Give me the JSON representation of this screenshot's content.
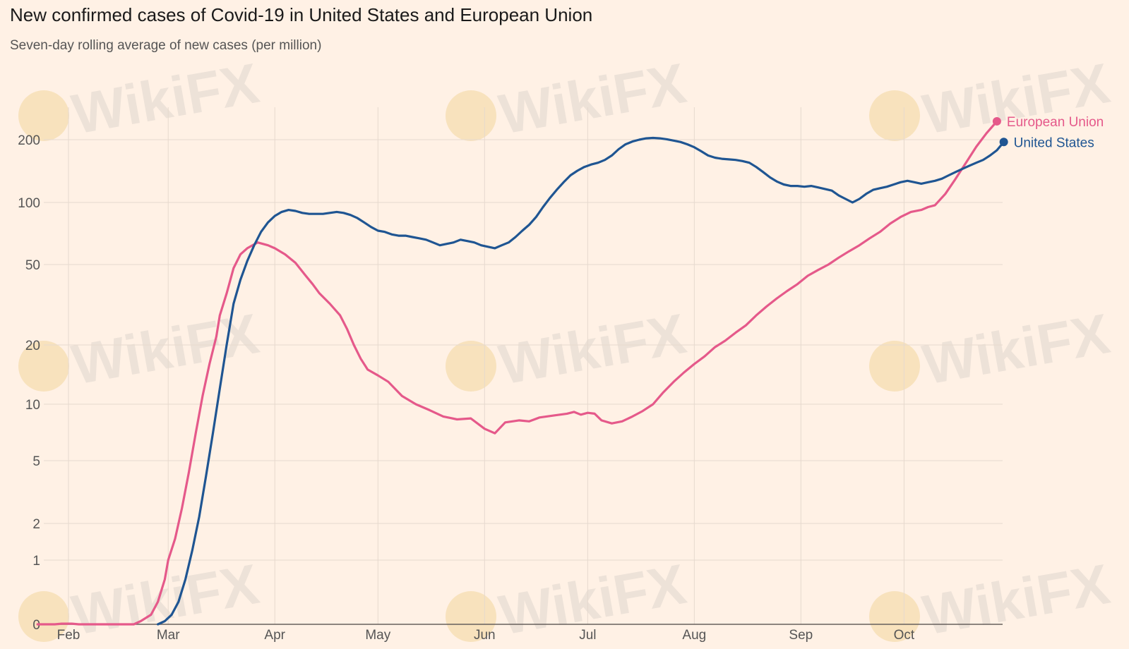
{
  "colors": {
    "background": "#fff1e5",
    "eu": "#e5598a",
    "us": "#1f5592"
  },
  "watermark": {
    "text": "WikiFX",
    "icon": "wikifx-eagle-logo"
  },
  "chart_data": {
    "type": "line",
    "title": "New confirmed cases of Covid-19 in United States and European Union",
    "subtitle": "Seven-day rolling average of new cases (per million)",
    "xlabel": "",
    "ylabel": "",
    "y_scale": "log-like (0 shown at baseline)",
    "ylim": [
      0,
      260
    ],
    "y_ticks": [
      0,
      1,
      2,
      5,
      10,
      20,
      50,
      100,
      200
    ],
    "y_tick_labels": [
      "0",
      "1",
      "2",
      "5",
      "10",
      "20",
      "50",
      "100",
      "200"
    ],
    "x_unit": "days since Jan 23",
    "x_ticks": [
      {
        "label": "Feb",
        "day": 9
      },
      {
        "label": "Mar",
        "day": 38
      },
      {
        "label": "Apr",
        "day": 69
      },
      {
        "label": "May",
        "day": 99
      },
      {
        "label": "Jun",
        "day": 130
      },
      {
        "label": "Jul",
        "day": 160
      },
      {
        "label": "Aug",
        "day": 191
      },
      {
        "label": "Sep",
        "day": 222
      },
      {
        "label": "Oct",
        "day": 252
      }
    ],
    "grid": true,
    "series": [
      {
        "name": "European Union",
        "color": "#e5598a",
        "points": [
          [
            0,
            0
          ],
          [
            5,
            0
          ],
          [
            7,
            0.01
          ],
          [
            10,
            0.01
          ],
          [
            12,
            0
          ],
          [
            20,
            0
          ],
          [
            25,
            0
          ],
          [
            28,
            0
          ],
          [
            30,
            0.05
          ],
          [
            33,
            0.15
          ],
          [
            35,
            0.35
          ],
          [
            37,
            0.7
          ],
          [
            38,
            1
          ],
          [
            40,
            1.5
          ],
          [
            42,
            2.5
          ],
          [
            44,
            4.2
          ],
          [
            46,
            7
          ],
          [
            48,
            11
          ],
          [
            50,
            16
          ],
          [
            52,
            22
          ],
          [
            53,
            28
          ],
          [
            55,
            36
          ],
          [
            57,
            48
          ],
          [
            59,
            56
          ],
          [
            61,
            60
          ],
          [
            64,
            64
          ],
          [
            67,
            62
          ],
          [
            69,
            60
          ],
          [
            72,
            56
          ],
          [
            75,
            51
          ],
          [
            78,
            44
          ],
          [
            80,
            40
          ],
          [
            82,
            36
          ],
          [
            85,
            32
          ],
          [
            88,
            28
          ],
          [
            90,
            24
          ],
          [
            92,
            20
          ],
          [
            94,
            17
          ],
          [
            96,
            15
          ],
          [
            99,
            14
          ],
          [
            102,
            13
          ],
          [
            106,
            11
          ],
          [
            110,
            10
          ],
          [
            114,
            9.3
          ],
          [
            118,
            8.6
          ],
          [
            122,
            8.3
          ],
          [
            126,
            8.4
          ],
          [
            130,
            7.4
          ],
          [
            133,
            7.0
          ],
          [
            136,
            8.0
          ],
          [
            140,
            8.2
          ],
          [
            143,
            8.1
          ],
          [
            146,
            8.5
          ],
          [
            150,
            8.7
          ],
          [
            154,
            8.9
          ],
          [
            156,
            9.1
          ],
          [
            158,
            8.8
          ],
          [
            160,
            9.0
          ],
          [
            162,
            8.9
          ],
          [
            164,
            8.2
          ],
          [
            167,
            7.9
          ],
          [
            170,
            8.1
          ],
          [
            173,
            8.6
          ],
          [
            176,
            9.2
          ],
          [
            179,
            10
          ],
          [
            182,
            11.5
          ],
          [
            185,
            13
          ],
          [
            188,
            14.5
          ],
          [
            191,
            16
          ],
          [
            194,
            17.5
          ],
          [
            197,
            19.5
          ],
          [
            200,
            21
          ],
          [
            203,
            23
          ],
          [
            206,
            25
          ],
          [
            209,
            28
          ],
          [
            212,
            31
          ],
          [
            215,
            34
          ],
          [
            218,
            37
          ],
          [
            221,
            40
          ],
          [
            224,
            44
          ],
          [
            227,
            47
          ],
          [
            230,
            50
          ],
          [
            233,
            54
          ],
          [
            236,
            58
          ],
          [
            239,
            62
          ],
          [
            242,
            67
          ],
          [
            245,
            72
          ],
          [
            248,
            79
          ],
          [
            251,
            85
          ],
          [
            254,
            90
          ],
          [
            257,
            92
          ],
          [
            259,
            95
          ],
          [
            261,
            97
          ],
          [
            264,
            110
          ],
          [
            267,
            130
          ],
          [
            270,
            155
          ],
          [
            273,
            185
          ],
          [
            276,
            215
          ],
          [
            279,
            245
          ]
        ]
      },
      {
        "name": "United States",
        "color": "#1f5592",
        "points": [
          [
            35,
            0
          ],
          [
            37,
            0.05
          ],
          [
            39,
            0.15
          ],
          [
            41,
            0.35
          ],
          [
            43,
            0.7
          ],
          [
            45,
            1.2
          ],
          [
            47,
            2.2
          ],
          [
            49,
            4
          ],
          [
            51,
            7
          ],
          [
            53,
            12
          ],
          [
            55,
            20
          ],
          [
            57,
            32
          ],
          [
            59,
            42
          ],
          [
            61,
            52
          ],
          [
            63,
            62
          ],
          [
            65,
            72
          ],
          [
            67,
            80
          ],
          [
            69,
            86
          ],
          [
            71,
            90
          ],
          [
            73,
            92
          ],
          [
            75,
            91
          ],
          [
            77,
            89
          ],
          [
            79,
            88
          ],
          [
            81,
            88
          ],
          [
            83,
            88
          ],
          [
            85,
            89
          ],
          [
            87,
            90
          ],
          [
            89,
            89
          ],
          [
            91,
            87
          ],
          [
            93,
            84
          ],
          [
            95,
            80
          ],
          [
            97,
            76
          ],
          [
            99,
            73
          ],
          [
            101,
            72
          ],
          [
            103,
            70
          ],
          [
            105,
            69
          ],
          [
            107,
            69
          ],
          [
            109,
            68
          ],
          [
            111,
            67
          ],
          [
            113,
            66
          ],
          [
            115,
            64
          ],
          [
            117,
            62
          ],
          [
            119,
            63
          ],
          [
            121,
            64
          ],
          [
            123,
            66
          ],
          [
            125,
            65
          ],
          [
            127,
            64
          ],
          [
            129,
            62
          ],
          [
            131,
            61
          ],
          [
            133,
            60
          ],
          [
            135,
            62
          ],
          [
            137,
            64
          ],
          [
            139,
            68
          ],
          [
            141,
            73
          ],
          [
            143,
            78
          ],
          [
            145,
            85
          ],
          [
            147,
            95
          ],
          [
            149,
            105
          ],
          [
            151,
            115
          ],
          [
            153,
            125
          ],
          [
            155,
            135
          ],
          [
            157,
            142
          ],
          [
            159,
            148
          ],
          [
            161,
            152
          ],
          [
            163,
            155
          ],
          [
            165,
            160
          ],
          [
            167,
            168
          ],
          [
            169,
            180
          ],
          [
            171,
            190
          ],
          [
            173,
            196
          ],
          [
            175,
            200
          ],
          [
            177,
            203
          ],
          [
            179,
            204
          ],
          [
            181,
            203
          ],
          [
            183,
            201
          ],
          [
            185,
            198
          ],
          [
            187,
            195
          ],
          [
            189,
            190
          ],
          [
            191,
            184
          ],
          [
            193,
            176
          ],
          [
            195,
            168
          ],
          [
            197,
            164
          ],
          [
            199,
            162
          ],
          [
            201,
            161
          ],
          [
            203,
            160
          ],
          [
            205,
            158
          ],
          [
            207,
            155
          ],
          [
            209,
            148
          ],
          [
            211,
            140
          ],
          [
            213,
            132
          ],
          [
            215,
            126
          ],
          [
            217,
            122
          ],
          [
            219,
            120
          ],
          [
            221,
            120
          ],
          [
            223,
            119
          ],
          [
            225,
            120
          ],
          [
            227,
            118
          ],
          [
            229,
            116
          ],
          [
            231,
            114
          ],
          [
            233,
            108
          ],
          [
            235,
            104
          ],
          [
            237,
            100
          ],
          [
            239,
            104
          ],
          [
            241,
            110
          ],
          [
            243,
            115
          ],
          [
            245,
            117
          ],
          [
            247,
            119
          ],
          [
            249,
            122
          ],
          [
            251,
            125
          ],
          [
            253,
            127
          ],
          [
            255,
            125
          ],
          [
            257,
            123
          ],
          [
            259,
            125
          ],
          [
            261,
            127
          ],
          [
            263,
            130
          ],
          [
            265,
            135
          ],
          [
            267,
            140
          ],
          [
            269,
            145
          ],
          [
            271,
            150
          ],
          [
            273,
            155
          ],
          [
            275,
            160
          ],
          [
            277,
            168
          ],
          [
            279,
            178
          ],
          [
            281,
            195
          ]
        ]
      }
    ]
  }
}
